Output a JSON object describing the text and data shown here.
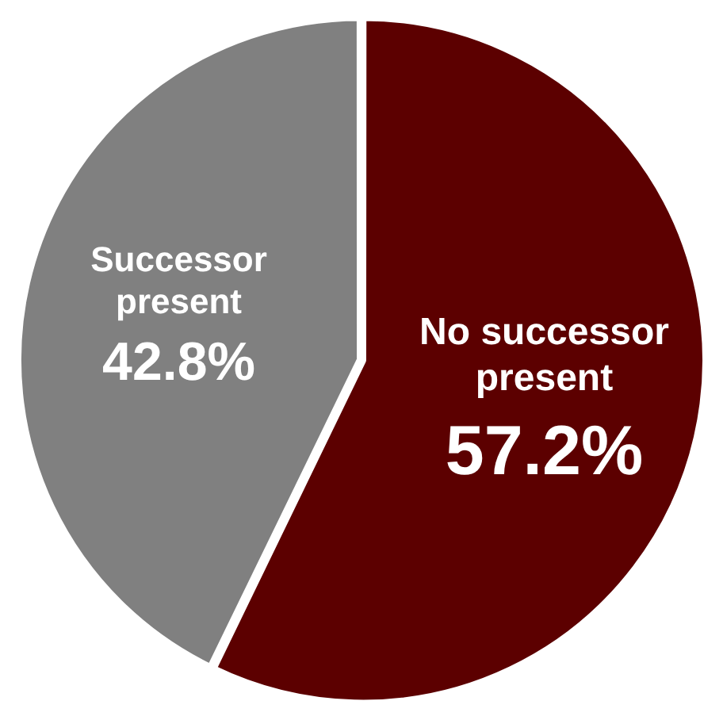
{
  "chart_data": {
    "type": "pie",
    "categories": [
      "No successor present",
      "Successor present"
    ],
    "values": [
      57.2,
      42.8
    ],
    "colors": [
      "#5c0000",
      "#808080"
    ],
    "value_labels": [
      "57.2%",
      "42.8%"
    ],
    "legend": false
  }
}
